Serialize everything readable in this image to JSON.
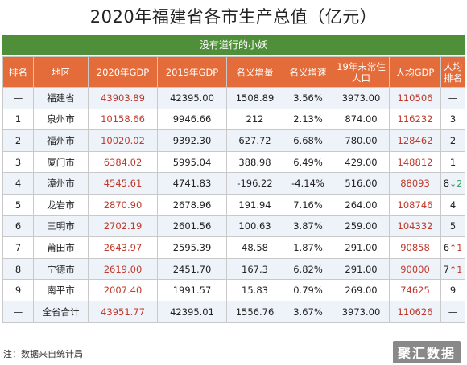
{
  "title": "2020年福建省各市生产总值（亿元）",
  "subtitle": "没有道行的小妖",
  "table": {
    "headers": [
      "排名",
      "地区",
      "2020年GDP",
      "2019年GDP",
      "名义增量",
      "名义增速",
      "19年末常住人口",
      "人均GDP",
      "人均排名"
    ],
    "rows": [
      {
        "rank": "—",
        "region": "福建省",
        "gdp2020": "43903.89",
        "gdp2019": "42395.00",
        "increase": "1508.89",
        "growth": "3.56%",
        "population": "3973.00",
        "per_capita": "110506",
        "pc_rank": "—",
        "pc_change": ""
      },
      {
        "rank": "1",
        "region": "泉州市",
        "gdp2020": "10158.66",
        "gdp2019": "9946.66",
        "increase": "212",
        "growth": "2.13%",
        "population": "874.00",
        "per_capita": "116232",
        "pc_rank": "3",
        "pc_change": ""
      },
      {
        "rank": "2",
        "region": "福州市",
        "gdp2020": "10020.02",
        "gdp2019": "9392.30",
        "increase": "627.72",
        "growth": "6.68%",
        "population": "780.00",
        "per_capita": "128462",
        "pc_rank": "2",
        "pc_change": ""
      },
      {
        "rank": "3",
        "region": "厦门市",
        "gdp2020": "6384.02",
        "gdp2019": "5995.04",
        "increase": "388.98",
        "growth": "6.49%",
        "population": "429.00",
        "per_capita": "148812",
        "pc_rank": "1",
        "pc_change": ""
      },
      {
        "rank": "4",
        "region": "漳州市",
        "gdp2020": "4545.61",
        "gdp2019": "4741.83",
        "increase": "-196.22",
        "growth": "-4.14%",
        "population": "516.00",
        "per_capita": "88093",
        "pc_rank": "8",
        "pc_change": "↓2"
      },
      {
        "rank": "5",
        "region": "龙岩市",
        "gdp2020": "2870.90",
        "gdp2019": "2678.96",
        "increase": "191.94",
        "growth": "7.16%",
        "population": "264.00",
        "per_capita": "108746",
        "pc_rank": "4",
        "pc_change": ""
      },
      {
        "rank": "6",
        "region": "三明市",
        "gdp2020": "2702.19",
        "gdp2019": "2601.56",
        "increase": "100.63",
        "growth": "3.87%",
        "population": "259.00",
        "per_capita": "104332",
        "pc_rank": "5",
        "pc_change": ""
      },
      {
        "rank": "7",
        "region": "莆田市",
        "gdp2020": "2643.97",
        "gdp2019": "2595.39",
        "increase": "48.58",
        "growth": "1.87%",
        "population": "291.00",
        "per_capita": "90858",
        "pc_rank": "6",
        "pc_change": "↑1"
      },
      {
        "rank": "8",
        "region": "宁德市",
        "gdp2020": "2619.00",
        "gdp2019": "2451.70",
        "increase": "167.3",
        "growth": "6.82%",
        "population": "291.00",
        "per_capita": "90000",
        "pc_rank": "7",
        "pc_change": "↑1"
      },
      {
        "rank": "9",
        "region": "南平市",
        "gdp2020": "2007.40",
        "gdp2019": "1991.57",
        "increase": "15.83",
        "growth": "0.79%",
        "population": "269.00",
        "per_capita": "74625",
        "pc_rank": "9",
        "pc_change": ""
      },
      {
        "rank": "—",
        "region": "全省合计",
        "gdp2020": "43951.77",
        "gdp2019": "42395.01",
        "increase": "1556.76",
        "growth": "3.67%",
        "population": "3973.00",
        "per_capita": "110626",
        "pc_rank": "—",
        "pc_change": ""
      }
    ]
  },
  "footnote": "注：数据来自统计局",
  "watermark": "聚汇数据",
  "colors": {
    "header": "#e36c3a",
    "subtitle_bar": "#4f8f3a",
    "highlight": "#c0392b",
    "down": "#2e9e5b"
  }
}
